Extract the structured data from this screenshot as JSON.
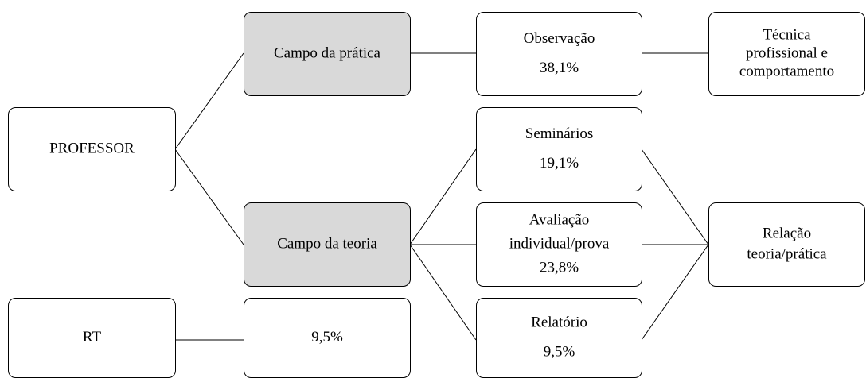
{
  "nodes": [
    {
      "lines": [
        "PROFESSOR"
      ]
    },
    {
      "lines": [
        "Campo da prática"
      ]
    },
    {
      "lines": [
        "Campo da teoria"
      ]
    },
    {
      "lines": [
        "Observação",
        "38,1%"
      ]
    },
    {
      "lines": [
        "Técnica",
        "profissional e",
        "comportamento"
      ]
    },
    {
      "lines": [
        "Seminários",
        "19,1%"
      ]
    },
    {
      "lines": [
        "Avaliação",
        "individual/prova",
        "23,8%"
      ]
    },
    {
      "lines": [
        "Relatório",
        "9,5%"
      ]
    },
    {
      "lines": [
        "Relação",
        "teoria/prática"
      ]
    },
    {
      "lines": [
        "RT"
      ]
    },
    {
      "lines": [
        "9,5%"
      ]
    }
  ]
}
